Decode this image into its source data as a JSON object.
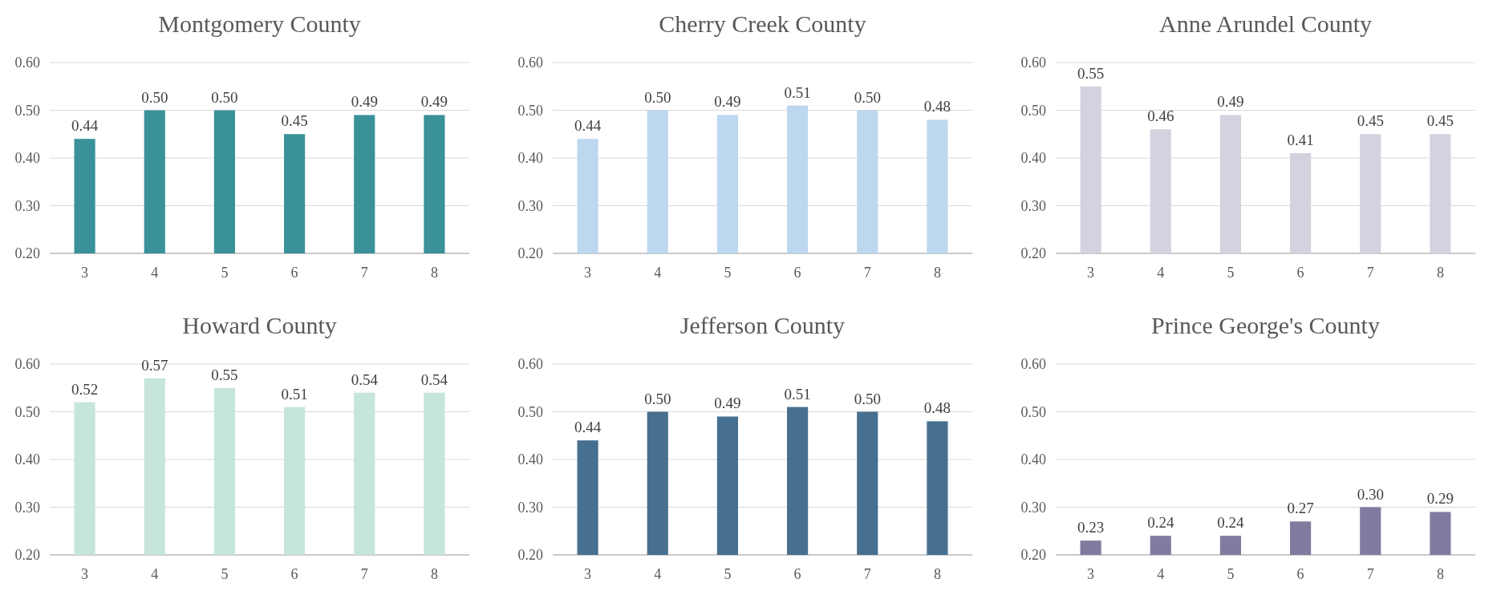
{
  "chart_data": [
    {
      "type": "bar",
      "title": "Montgomery County",
      "categories": [
        "3",
        "4",
        "5",
        "6",
        "7",
        "8"
      ],
      "values": [
        0.44,
        0.5,
        0.5,
        0.45,
        0.49,
        0.49
      ],
      "value_labels": [
        "0.44",
        "0.50",
        "0.50",
        "0.45",
        "0.49",
        "0.49"
      ],
      "color": "#3a9199",
      "ylim": [
        0.2,
        0.6
      ],
      "yticks": [
        {
          "value": 0.2,
          "label": "0.20"
        },
        {
          "value": 0.3,
          "label": "0.30"
        },
        {
          "value": 0.4,
          "label": "0.40"
        },
        {
          "value": 0.5,
          "label": "0.50"
        },
        {
          "value": 0.6,
          "label": "0.60"
        }
      ],
      "grid": "y"
    },
    {
      "type": "bar",
      "title": "Cherry Creek County",
      "categories": [
        "3",
        "4",
        "5",
        "6",
        "7",
        "8"
      ],
      "values": [
        0.44,
        0.5,
        0.49,
        0.51,
        0.5,
        0.48
      ],
      "value_labels": [
        "0.44",
        "0.50",
        "0.49",
        "0.51",
        "0.50",
        "0.48"
      ],
      "color": "#bdd7ee",
      "ylim": [
        0.2,
        0.6
      ],
      "yticks": [
        {
          "value": 0.2,
          "label": "0.20"
        },
        {
          "value": 0.3,
          "label": "0.30"
        },
        {
          "value": 0.4,
          "label": "0.40"
        },
        {
          "value": 0.5,
          "label": "0.50"
        },
        {
          "value": 0.6,
          "label": "0.60"
        }
      ],
      "grid": "y"
    },
    {
      "type": "bar",
      "title": "Anne Arundel County",
      "categories": [
        "3",
        "4",
        "5",
        "6",
        "7",
        "8"
      ],
      "values": [
        0.55,
        0.46,
        0.49,
        0.41,
        0.45,
        0.45
      ],
      "value_labels": [
        "0.55",
        "0.46",
        "0.49",
        "0.41",
        "0.45",
        "0.45"
      ],
      "color": "#d3d3df",
      "ylim": [
        0.2,
        0.6
      ],
      "yticks": [
        {
          "value": 0.2,
          "label": "0.20"
        },
        {
          "value": 0.3,
          "label": "0.30"
        },
        {
          "value": 0.4,
          "label": "0.40"
        },
        {
          "value": 0.5,
          "label": "0.50"
        },
        {
          "value": 0.6,
          "label": "0.60"
        }
      ],
      "grid": "y"
    },
    {
      "type": "bar",
      "title": "Howard County",
      "categories": [
        "3",
        "4",
        "5",
        "6",
        "7",
        "8"
      ],
      "values": [
        0.52,
        0.57,
        0.55,
        0.51,
        0.54,
        0.54
      ],
      "value_labels": [
        "0.52",
        "0.57",
        "0.55",
        "0.51",
        "0.54",
        "0.54"
      ],
      "color": "#c6e5db",
      "ylim": [
        0.2,
        0.6
      ],
      "yticks": [
        {
          "value": 0.2,
          "label": "0.20"
        },
        {
          "value": 0.3,
          "label": "0.30"
        },
        {
          "value": 0.4,
          "label": "0.40"
        },
        {
          "value": 0.5,
          "label": "0.50"
        },
        {
          "value": 0.6,
          "label": "0.60"
        }
      ],
      "grid": "y"
    },
    {
      "type": "bar",
      "title": "Jefferson County",
      "categories": [
        "3",
        "4",
        "5",
        "6",
        "7",
        "8"
      ],
      "values": [
        0.44,
        0.5,
        0.49,
        0.51,
        0.5,
        0.48
      ],
      "value_labels": [
        "0.44",
        "0.50",
        "0.49",
        "0.51",
        "0.50",
        "0.48"
      ],
      "color": "#476f8f",
      "ylim": [
        0.2,
        0.6
      ],
      "yticks": [
        {
          "value": 0.2,
          "label": "0.20"
        },
        {
          "value": 0.3,
          "label": "0.30"
        },
        {
          "value": 0.4,
          "label": "0.40"
        },
        {
          "value": 0.5,
          "label": "0.50"
        },
        {
          "value": 0.6,
          "label": "0.60"
        }
      ],
      "grid": "y"
    },
    {
      "type": "bar",
      "title": "Prince George's County",
      "categories": [
        "3",
        "4",
        "5",
        "6",
        "7",
        "8"
      ],
      "values": [
        0.23,
        0.24,
        0.24,
        0.27,
        0.3,
        0.29
      ],
      "value_labels": [
        "0.23",
        "0.24",
        "0.24",
        "0.27",
        "0.30",
        "0.29"
      ],
      "color": "#827ba0",
      "ylim": [
        0.2,
        0.6
      ],
      "yticks": [
        {
          "value": 0.2,
          "label": "0.20"
        },
        {
          "value": 0.3,
          "label": "0.30"
        },
        {
          "value": 0.4,
          "label": "0.40"
        },
        {
          "value": 0.5,
          "label": "0.50"
        },
        {
          "value": 0.6,
          "label": "0.60"
        }
      ],
      "grid": "y"
    }
  ]
}
